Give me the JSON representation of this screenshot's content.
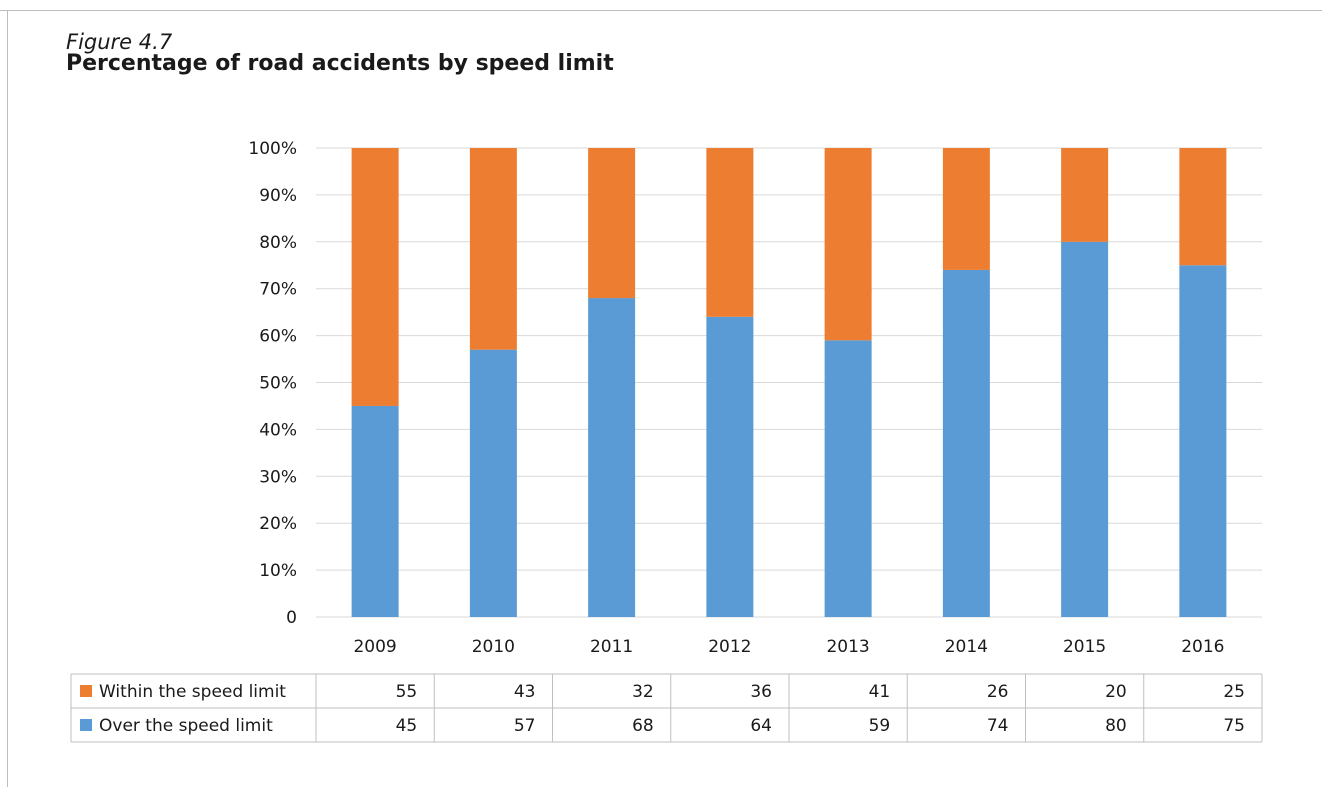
{
  "figure_label": "Figure 4.7",
  "colors": {
    "over": "#5b9bd5",
    "within": "#ed7d31",
    "grid": "#d9d9d9",
    "border": "#bfbfbf"
  },
  "chart_data": {
    "type": "bar",
    "stacked": true,
    "title": "Percentage of road accidents by speed limit",
    "xlabel": "",
    "ylabel": "",
    "ylim": [
      0,
      100
    ],
    "yticks": [
      "0",
      "10%",
      "20%",
      "30%",
      "40%",
      "50%",
      "60%",
      "70%",
      "80%",
      "90%",
      "100%"
    ],
    "grid": true,
    "legend": "data-table",
    "categories": [
      "2009",
      "2010",
      "2011",
      "2012",
      "2013",
      "2014",
      "2015",
      "2016"
    ],
    "series": [
      {
        "name": "Over the speed limit",
        "values": [
          45,
          57,
          68,
          64,
          59,
          74,
          80,
          75
        ]
      },
      {
        "name": "Within the speed limit",
        "values": [
          55,
          43,
          32,
          36,
          41,
          26,
          20,
          25
        ]
      }
    ]
  }
}
